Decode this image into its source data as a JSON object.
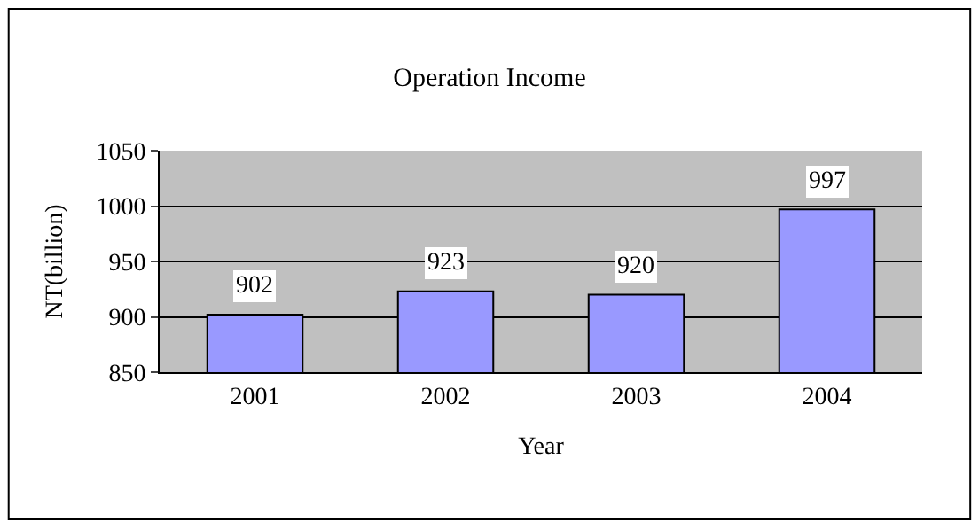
{
  "chart_data": {
    "type": "bar",
    "title": "Operation Income",
    "xlabel": "Year",
    "ylabel": "NT(billion)",
    "categories": [
      "2001",
      "2002",
      "2003",
      "2004"
    ],
    "values": [
      902,
      923,
      920,
      997
    ],
    "color": "#9999ff",
    "ylim": [
      850,
      1050
    ],
    "yticks": [
      850,
      900,
      950,
      1000,
      1050
    ],
    "grid": "y",
    "data_labels": true
  }
}
